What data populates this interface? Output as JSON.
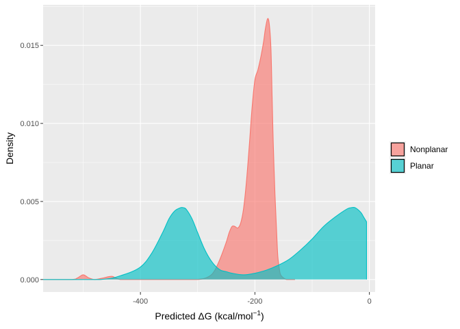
{
  "chart_data": {
    "type": "area",
    "subtype": "density",
    "title": "",
    "xlabel": "Predicted ΔG (kcal/mol",
    "xlabel_superscript": "−1",
    "xlabel_suffix": ")",
    "ylabel": "Density",
    "xlim": [
      -570,
      10
    ],
    "ylim": [
      -0.0008,
      0.0176
    ],
    "x_ticks": [
      -400,
      -200,
      0
    ],
    "x_tick_labels": [
      "-400",
      "-200",
      "0"
    ],
    "y_ticks": [
      0.0,
      0.005,
      0.01,
      0.015
    ],
    "y_tick_labels": [
      "0.000",
      "0.005",
      "0.010",
      "0.015"
    ],
    "grid": true,
    "legend_position": "right",
    "series": [
      {
        "name": "Nonplanar",
        "fill": "#F8766D",
        "x": [
          -570,
          -520,
          -510,
          -500,
          -490,
          -480,
          -465,
          -450,
          -435,
          -400,
          -350,
          -300,
          -280,
          -270,
          -260,
          -250,
          -245,
          -240,
          -235,
          -230,
          -225,
          -220,
          -215,
          -210,
          -205,
          -200,
          -195,
          -190,
          -185,
          -182,
          -178,
          -175,
          -172,
          -170,
          -168,
          -165,
          -162,
          -160,
          -157,
          -155,
          -150,
          -145,
          -140,
          -130
        ],
        "y": [
          0.0,
          0.0,
          0.0001,
          0.0003,
          0.0001,
          0.0,
          0.0001,
          0.0002,
          0.0,
          0.0,
          0.0,
          0.0,
          0.0002,
          0.0006,
          0.0014,
          0.0024,
          0.003,
          0.0034,
          0.0034,
          0.0033,
          0.0036,
          0.0045,
          0.0062,
          0.0085,
          0.011,
          0.0128,
          0.0134,
          0.0142,
          0.0152,
          0.016,
          0.0167,
          0.0164,
          0.0148,
          0.0118,
          0.0088,
          0.0055,
          0.003,
          0.0015,
          0.0006,
          0.0003,
          0.0001,
          0.0,
          0.0,
          0.0
        ]
      },
      {
        "name": "Planar",
        "fill": "#00BFC4",
        "x": [
          -570,
          -470,
          -430,
          -400,
          -380,
          -360,
          -350,
          -340,
          -330,
          -325,
          -320,
          -310,
          -300,
          -290,
          -280,
          -270,
          -260,
          -250,
          -240,
          -220,
          -200,
          -180,
          -160,
          -140,
          -120,
          -100,
          -80,
          -60,
          -40,
          -32,
          -25,
          -15,
          -10,
          -5
        ],
        "y": [
          0.0,
          0.0,
          0.0003,
          0.0008,
          0.0017,
          0.0031,
          0.0039,
          0.0044,
          0.0046,
          0.0046,
          0.0045,
          0.0039,
          0.003,
          0.0021,
          0.0014,
          0.0009,
          0.0006,
          0.0005,
          0.0004,
          0.0003,
          0.0004,
          0.0006,
          0.0009,
          0.0013,
          0.0019,
          0.0026,
          0.0034,
          0.004,
          0.0045,
          0.0046,
          0.0046,
          0.0043,
          0.004,
          0.0037
        ]
      }
    ]
  }
}
